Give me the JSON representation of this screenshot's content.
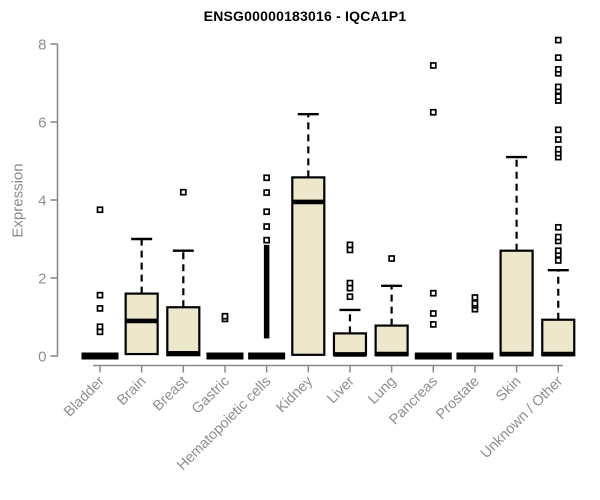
{
  "chart_data": {
    "type": "boxplot",
    "title": "ENSG00000183016 - IQCA1P1",
    "ylabel": "Expression",
    "xlabel": "",
    "ylim": [
      0,
      8
    ],
    "yticks": [
      0,
      2,
      4,
      6,
      8
    ],
    "grid": false,
    "legend": "none",
    "colors": {
      "box_fill": "#EDE7CB",
      "box_stroke": "#000000",
      "median": "#000000",
      "outlier": "#000000",
      "axis": "#8A8A8A",
      "tick_label": "#8E8E8E",
      "title": "#000000",
      "background": "#FFFFFF"
    },
    "categories": [
      "Bladder",
      "Brain",
      "Breast",
      "Gastric",
      "Hematopoietic cells",
      "Kidney",
      "Liver",
      "Lung",
      "Pancreas",
      "Prostate",
      "Skin",
      "Unknown / Other"
    ],
    "boxes": [
      {
        "category": "Bladder",
        "collapsed": true,
        "q1": 0,
        "median": 0,
        "q3": 0.05,
        "whisker_low": 0,
        "whisker_high": 0.05,
        "outliers": [
          0.62,
          0.75,
          1.22,
          1.56,
          3.75
        ]
      },
      {
        "category": "Brain",
        "collapsed": false,
        "q1": 0.05,
        "median": 0.9,
        "q3": 1.6,
        "whisker_low": 0,
        "whisker_high": 3.0,
        "outliers": []
      },
      {
        "category": "Breast",
        "collapsed": false,
        "q1": 0.02,
        "median": 0.07,
        "q3": 1.25,
        "whisker_low": 0,
        "whisker_high": 2.7,
        "outliers": [
          4.2
        ]
      },
      {
        "category": "Gastric",
        "collapsed": true,
        "q1": 0,
        "median": 0,
        "q3": 0.05,
        "whisker_low": 0,
        "whisker_high": 0.05,
        "outliers": [
          0.95,
          1.02
        ]
      },
      {
        "category": "Hematopoietic cells",
        "collapsed": true,
        "q1": 0,
        "median": 0,
        "q3": 0.05,
        "whisker_low": 0,
        "whisker_high": 0.05,
        "outliers": [
          2.97,
          3.32,
          3.7,
          4.19,
          4.57
        ],
        "outlier_band": [
          0.45,
          2.85
        ]
      },
      {
        "category": "Kidney",
        "collapsed": false,
        "q1": 0.03,
        "median": 3.95,
        "q3": 4.58,
        "whisker_low": 0,
        "whisker_high": 6.2,
        "outliers": []
      },
      {
        "category": "Liver",
        "collapsed": false,
        "q1": 0.02,
        "median": 0.04,
        "q3": 0.58,
        "whisker_low": 0,
        "whisker_high": 1.18,
        "outliers": [
          1.52,
          1.74,
          1.87,
          2.72,
          2.85
        ]
      },
      {
        "category": "Lung",
        "collapsed": false,
        "q1": 0.02,
        "median": 0.05,
        "q3": 0.78,
        "whisker_low": 0,
        "whisker_high": 1.8,
        "outliers": [
          2.5
        ]
      },
      {
        "category": "Pancreas",
        "collapsed": true,
        "q1": 0,
        "median": 0,
        "q3": 0.05,
        "whisker_low": 0,
        "whisker_high": 0.05,
        "outliers": [
          0.81,
          1.09,
          1.61,
          6.25,
          7.45
        ]
      },
      {
        "category": "Prostate",
        "collapsed": true,
        "q1": 0,
        "median": 0,
        "q3": 0.05,
        "whisker_low": 0,
        "whisker_high": 0.05,
        "outliers": [
          1.2,
          1.3,
          1.35,
          1.5
        ]
      },
      {
        "category": "Skin",
        "collapsed": false,
        "q1": 0.02,
        "median": 0.05,
        "q3": 2.7,
        "whisker_low": 0,
        "whisker_high": 5.1,
        "outliers": []
      },
      {
        "category": "Unknown / Other",
        "collapsed": false,
        "q1": 0.02,
        "median": 0.05,
        "q3": 0.93,
        "whisker_low": 0,
        "whisker_high": 2.2,
        "outliers": [
          2.45,
          2.6,
          2.7,
          2.95,
          3.05,
          3.3,
          5.1,
          5.2,
          5.3,
          5.55,
          5.8,
          6.55,
          6.65,
          6.8,
          6.9,
          7.25,
          7.35,
          7.65,
          8.1
        ]
      }
    ]
  }
}
